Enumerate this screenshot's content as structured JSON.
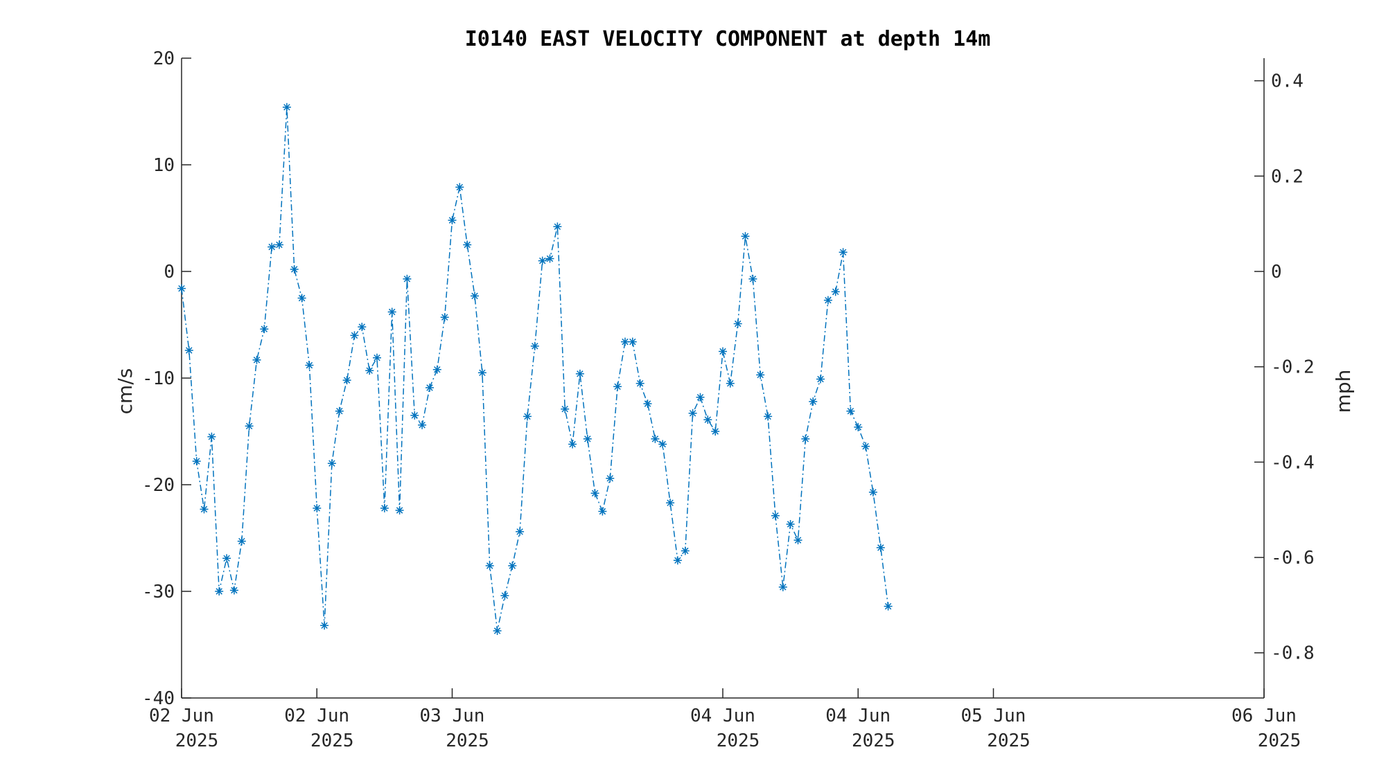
{
  "chart_data": {
    "type": "line",
    "title": "I0140 EAST VELOCITY COMPONENT at depth 14m",
    "ylabel": "cm/s",
    "y2label": "mph",
    "ylim": [
      -40,
      20
    ],
    "yticks": [
      -40,
      -30,
      -20,
      -10,
      0,
      10,
      20
    ],
    "y2lim": [
      -0.8948,
      0.4474
    ],
    "y2ticks": [
      -0.8,
      -0.6,
      -0.4,
      -0.2,
      0,
      0.2,
      0.4
    ],
    "xlim": [
      "2025-06-02 00:00",
      "2025-06-06 00:00"
    ],
    "xticks": [
      {
        "x": "2025-06-02 00:00",
        "line1": "02 Jun",
        "line2": "2025"
      },
      {
        "x": "2025-06-02 12:00",
        "line1": "02 Jun",
        "line2": "2025"
      },
      {
        "x": "2025-06-03 00:00",
        "line1": "03 Jun",
        "line2": "2025"
      },
      {
        "x": "2025-06-04 00:00",
        "line1": "04 Jun",
        "line2": "2025"
      },
      {
        "x": "2025-06-04 12:00",
        "line1": "04 Jun",
        "line2": "2025"
      },
      {
        "x": "2025-06-05 00:00",
        "line1": "05 Jun",
        "line2": "2025"
      },
      {
        "x": "2025-06-06 00:00",
        "line1": "06 Jun",
        "line2": "2025"
      }
    ],
    "grid": false,
    "line_color": "#0072bd",
    "line_style": "dash-dot",
    "marker": "asterisk",
    "series": [
      {
        "name": "",
        "x_start": "2025-06-02 00:00",
        "x_step_minutes": 40,
        "values": [
          -1.6,
          -7.4,
          -17.8,
          -22.3,
          -15.5,
          -30.0,
          -26.9,
          -29.9,
          -25.3,
          -14.5,
          -8.3,
          -5.4,
          2.3,
          2.5,
          15.4,
          0.2,
          -2.5,
          -8.8,
          -22.2,
          -33.2,
          -18.0,
          -13.1,
          -10.2,
          -6.0,
          -5.2,
          -9.3,
          -8.1,
          -22.2,
          -3.8,
          -22.4,
          -0.7,
          -13.5,
          -14.4,
          -10.9,
          -9.2,
          -4.3,
          4.8,
          7.9,
          2.5,
          -2.3,
          -9.5,
          -27.6,
          -33.7,
          -30.4,
          -27.6,
          -24.4,
          -13.6,
          -7.0,
          1.0,
          1.2,
          4.2,
          -12.9,
          -16.2,
          -9.6,
          -15.7,
          -20.8,
          -22.5,
          -19.4,
          -10.8,
          -6.6,
          -6.6,
          -10.5,
          -12.4,
          -15.7,
          -16.2,
          -21.7,
          -27.1,
          -26.2,
          -13.3,
          -11.8,
          -13.9,
          -15.0,
          -7.5,
          -10.5,
          -4.9,
          3.3,
          -0.7,
          -9.7,
          -13.6,
          -22.9,
          -29.6,
          -23.7,
          -25.2,
          -15.7,
          -12.2,
          -10.1,
          -2.7,
          -1.9,
          1.8,
          -13.1,
          -14.6,
          -16.4,
          -20.7,
          -25.9,
          -31.4
        ]
      }
    ]
  }
}
